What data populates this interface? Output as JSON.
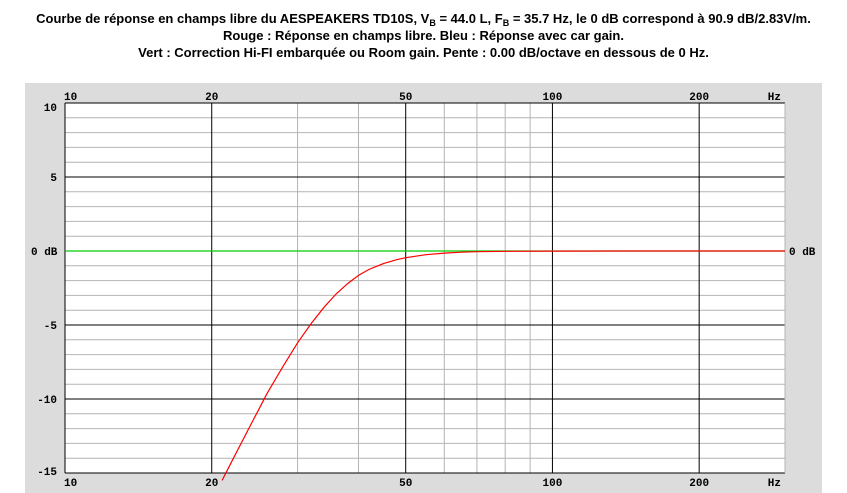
{
  "title": {
    "line1_pre": "Courbe de réponse en champs libre du AESPEAKERS TD10S, V",
    "line1_sub_b": "B",
    "line1_mid1": " = 44.0 L, F",
    "line1_sub_b2": "B",
    "line1_mid2": " = 35.7 Hz, le 0 dB correspond à 90.9 dB/2.83V/m.",
    "line2": "Rouge : Réponse en champs libre. Bleu : Réponse avec car gain.",
    "line3": "Vert : Correction Hi-FI embarquée ou Room gain. Pente : 0.00 dB/octave en dessous de 0 Hz."
  },
  "chart_data": {
    "type": "line",
    "x_scale": "log",
    "xlim": [
      10,
      300
    ],
    "ylim": [
      -15,
      10
    ],
    "grid": true,
    "x_ticks": [
      {
        "value": 10,
        "label": "10"
      },
      {
        "value": 20,
        "label": "20"
      },
      {
        "value": 50,
        "label": "50"
      },
      {
        "value": 100,
        "label": "100"
      },
      {
        "value": 200,
        "label": "200"
      }
    ],
    "x_unit_label": "Hz",
    "y_ticks_left": [
      {
        "value": 10,
        "label": "10"
      },
      {
        "value": 5,
        "label": "5"
      },
      {
        "value": 0,
        "label": "0 dB"
      },
      {
        "value": -5,
        "label": "-5"
      },
      {
        "value": -10,
        "label": "-10"
      },
      {
        "value": -15,
        "label": "-15"
      }
    ],
    "y_tick_right": {
      "value": 0,
      "label": "0 dB"
    },
    "series": [
      {
        "color": "#00cc00",
        "x": [
          10,
          300
        ],
        "y": [
          0,
          0
        ]
      },
      {
        "color": "#ff0000",
        "x": [
          21,
          22,
          24,
          26,
          28,
          30,
          32,
          34,
          36,
          38,
          40,
          42,
          45,
          48,
          50,
          55,
          60,
          65,
          70,
          80,
          100,
          150,
          200,
          300
        ],
        "y": [
          -15.5,
          -14.2,
          -11.8,
          -9.6,
          -7.8,
          -6.2,
          -4.9,
          -3.8,
          -2.9,
          -2.2,
          -1.65,
          -1.25,
          -0.85,
          -0.58,
          -0.45,
          -0.25,
          -0.14,
          -0.08,
          -0.05,
          -0.02,
          -0.01,
          0,
          0,
          0
        ]
      }
    ]
  }
}
